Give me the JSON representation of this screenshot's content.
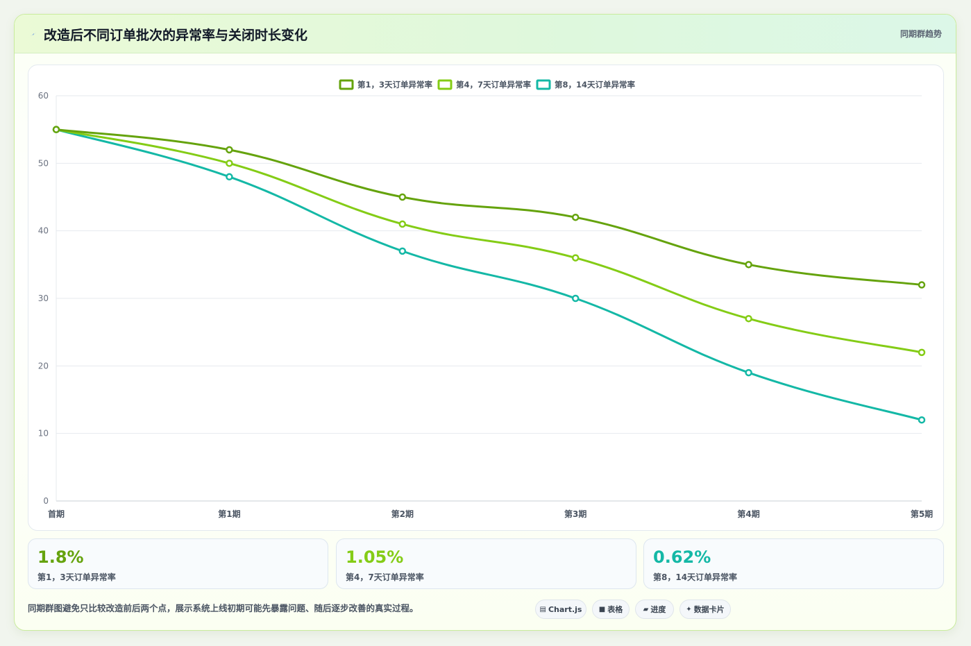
{
  "header": {
    "icon": "lightning-icon",
    "title": "改造后不同订单批次的异常率与关闭时长变化",
    "tag": "同期群趋势"
  },
  "chart_data": {
    "type": "line",
    "title": "",
    "xlabel": "",
    "ylabel": "",
    "categories": [
      "首期",
      "第1期",
      "第2期",
      "第3期",
      "第4期",
      "第5期"
    ],
    "ylim": [
      0,
      60
    ],
    "yticks": [
      0,
      10,
      20,
      30,
      40,
      50,
      60
    ],
    "grid": true,
    "legend_position": "top-center",
    "series": [
      {
        "name": "第1，3天订单异常率",
        "color": "#65a30d",
        "values": [
          55,
          52,
          45,
          42,
          35,
          32
        ]
      },
      {
        "name": "第4，7天订单异常率",
        "color": "#84cc16",
        "values": [
          55,
          50,
          41,
          36,
          27,
          22
        ]
      },
      {
        "name": "第8，14天订单异常率",
        "color": "#14b8a6",
        "values": [
          55,
          48,
          37,
          30,
          19,
          12
        ]
      }
    ]
  },
  "kpis": [
    {
      "value": "1.8%",
      "label": "第1，3天订单异常率",
      "color": "#65a30d"
    },
    {
      "value": "1.05%",
      "label": "第4，7天订单异常率",
      "color": "#84cc16"
    },
    {
      "value": "0.62%",
      "label": "第8，14天订单异常率",
      "color": "#14b8a6"
    }
  ],
  "footnote": "同期群图避免只比较改造前后两个点，展示系统上线初期可能先暴露问题、随后逐步改善的真实过程。",
  "pills": [
    {
      "icon": "chart-icon",
      "glyph": "▤",
      "label": "Chart.js"
    },
    {
      "icon": "table-icon",
      "glyph": "■",
      "label": "表格"
    },
    {
      "icon": "progress-icon",
      "glyph": "▰",
      "label": "进度"
    },
    {
      "icon": "card-icon",
      "glyph": "✦",
      "label": "数据卡片"
    }
  ]
}
